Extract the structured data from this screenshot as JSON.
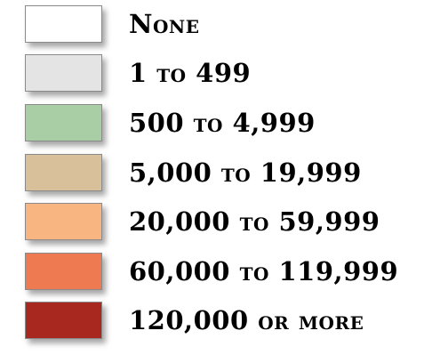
{
  "legend": {
    "items": [
      {
        "label": "None",
        "color": "#ffffff"
      },
      {
        "label": "1 to 499",
        "color": "#e4e4e4"
      },
      {
        "label": "500 to 4,999",
        "color": "#a9cea5"
      },
      {
        "label": "5,000 to 19,999",
        "color": "#d8c19a"
      },
      {
        "label": "20,000 to 59,999",
        "color": "#f8b581"
      },
      {
        "label": "60,000 to 119,999",
        "color": "#ee7a52"
      },
      {
        "label": "120,000 or more",
        "color": "#a82820"
      }
    ]
  }
}
